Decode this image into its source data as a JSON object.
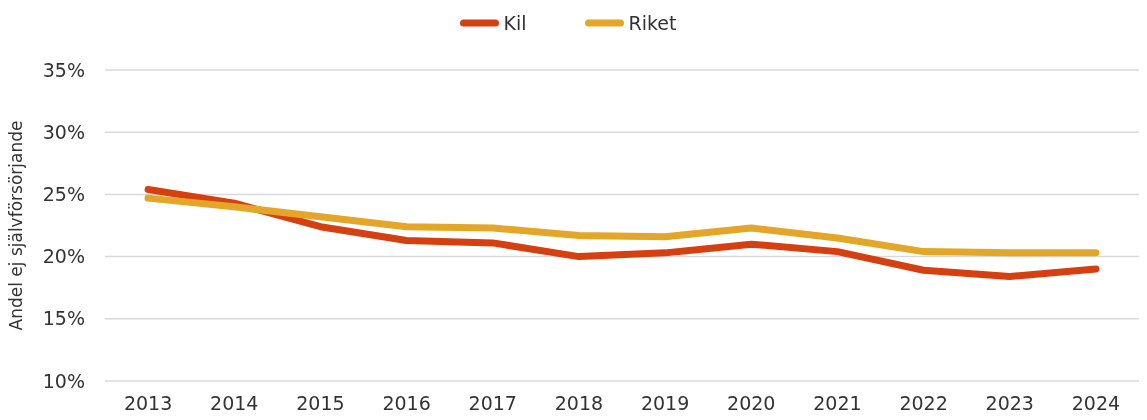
{
  "chart_data": {
    "type": "line",
    "ylabel": "Andel ej självförsörjande",
    "categories": [
      "2013",
      "2014",
      "2015",
      "2016",
      "2017",
      "2018",
      "2019",
      "2020",
      "2021",
      "2022",
      "2023",
      "2024"
    ],
    "series": [
      {
        "name": "Kil",
        "color": "#d63f0f",
        "values": [
          25.4,
          24.3,
          22.4,
          21.3,
          21.1,
          20.0,
          20.3,
          21.0,
          20.4,
          18.9,
          18.4,
          19.0
        ]
      },
      {
        "name": "Riket",
        "color": "#e3a628",
        "values": [
          24.7,
          24.0,
          23.2,
          22.4,
          22.3,
          21.7,
          21.6,
          22.3,
          21.5,
          20.4,
          20.3,
          20.3
        ]
      }
    ],
    "ylim": [
      10,
      35
    ],
    "yticks": [
      {
        "value": 10,
        "label": "10%"
      },
      {
        "value": 15,
        "label": "15%"
      },
      {
        "value": 20,
        "label": "20%"
      },
      {
        "value": 25,
        "label": "25%"
      },
      {
        "value": 30,
        "label": "30%"
      },
      {
        "value": 35,
        "label": "35%"
      }
    ],
    "grid": "y",
    "legend": "top",
    "marker": "none",
    "line_style": "solid"
  }
}
